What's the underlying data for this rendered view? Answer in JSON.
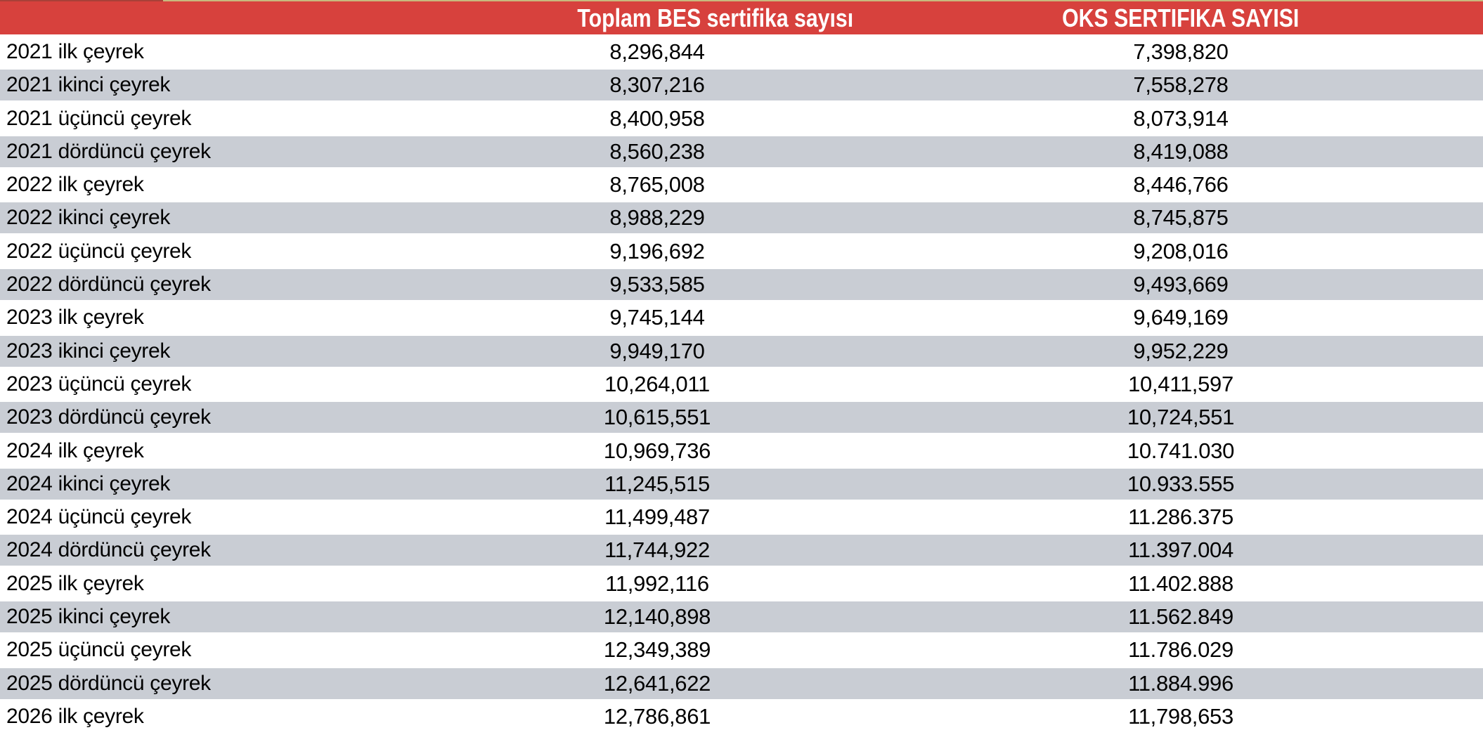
{
  "header": {
    "col_bes": "Toplam BES sertifika sayısı",
    "col_oks": "OKS SERTIFIKA SAYISI"
  },
  "rows": [
    {
      "label": "2021 ilk çeyrek",
      "bes": "8,296,844",
      "oks": "7,398,820"
    },
    {
      "label": "2021 ikinci çeyrek",
      "bes": "8,307,216",
      "oks": "7,558,278"
    },
    {
      "label": "2021 üçüncü çeyrek",
      "bes": "8,400,958",
      "oks": "8,073,914"
    },
    {
      "label": "2021 dördüncü çeyrek",
      "bes": "8,560,238",
      "oks": "8,419,088"
    },
    {
      "label": "2022 ilk çeyrek",
      "bes": "8,765,008",
      "oks": "8,446,766"
    },
    {
      "label": "2022 ikinci çeyrek",
      "bes": "8,988,229",
      "oks": "8,745,875"
    },
    {
      "label": "2022 üçüncü çeyrek",
      "bes": "9,196,692",
      "oks": "9,208,016"
    },
    {
      "label": "2022 dördüncü çeyrek",
      "bes": "9,533,585",
      "oks": "9,493,669"
    },
    {
      "label": "2023 ilk çeyrek",
      "bes": "9,745,144",
      "oks": "9,649,169"
    },
    {
      "label": "2023 ikinci çeyrek",
      "bes": "9,949,170",
      "oks": "9,952,229"
    },
    {
      "label": "2023 üçüncü çeyrek",
      "bes": "10,264,011",
      "oks": "10,411,597"
    },
    {
      "label": "2023 dördüncü çeyrek",
      "bes": "10,615,551",
      "oks": "10,724,551"
    },
    {
      "label": "2024 ilk çeyrek",
      "bes": "10,969,736",
      "oks": "10.741.030"
    },
    {
      "label": "2024 ikinci çeyrek",
      "bes": "11,245,515",
      "oks": "10.933.555"
    },
    {
      "label": "2024 üçüncü çeyrek",
      "bes": "11,499,487",
      "oks": "11.286.375"
    },
    {
      "label": "2024 dördüncü çeyrek",
      "bes": "11,744,922",
      "oks": "11.397.004"
    },
    {
      "label": "2025 ilk çeyrek",
      "bes": "11,992,116",
      "oks": "11.402.888"
    },
    {
      "label": "2025 ikinci çeyrek",
      "bes": "12,140,898",
      "oks": "11.562.849"
    },
    {
      "label": "2025 üçüncü çeyrek",
      "bes": "12,349,389",
      "oks": "11.786.029"
    },
    {
      "label": "2025 dördüncü çeyrek",
      "bes": "12,641,622",
      "oks": "11.884.996"
    },
    {
      "label": "2026 ilk çeyrek",
      "bes": "12,786,861",
      "oks": "11,798,653"
    }
  ],
  "colors": {
    "header_bg": "#d7413d",
    "header_text": "#ffffff",
    "row_alt_bg": "#c9cdd4",
    "body_text": "#000000",
    "top_strip_left": "#a84038",
    "top_strip_right": "#c8b97e"
  },
  "chart_data": {
    "type": "table",
    "title": "",
    "columns": [
      "",
      "Toplam BES sertifika sayısı",
      "OKS SERTIFIKA SAYISI"
    ],
    "rows": [
      [
        "2021 ilk çeyrek",
        8296844,
        7398820
      ],
      [
        "2021 ikinci çeyrek",
        8307216,
        7558278
      ],
      [
        "2021 üçüncü çeyrek",
        8400958,
        8073914
      ],
      [
        "2021 dördüncü çeyrek",
        8560238,
        8419088
      ],
      [
        "2022 ilk çeyrek",
        8765008,
        8446766
      ],
      [
        "2022 ikinci çeyrek",
        8988229,
        8745875
      ],
      [
        "2022 üçüncü çeyrek",
        9196692,
        9208016
      ],
      [
        "2022 dördüncü çeyrek",
        9533585,
        9493669
      ],
      [
        "2023 ilk çeyrek",
        9745144,
        9649169
      ],
      [
        "2023 ikinci çeyrek",
        9949170,
        9952229
      ],
      [
        "2023 üçüncü çeyrek",
        10264011,
        10411597
      ],
      [
        "2023 dördüncü çeyrek",
        10615551,
        10724551
      ],
      [
        "2024 ilk çeyrek",
        10969736,
        10741030
      ],
      [
        "2024 ikinci çeyrek",
        11245515,
        10933555
      ],
      [
        "2024 üçüncü çeyrek",
        11499487,
        11286375
      ],
      [
        "2024 dördüncü çeyrek",
        11744922,
        11397004
      ],
      [
        "2025 ilk çeyrek",
        11992116,
        11402888
      ],
      [
        "2025 ikinci çeyrek",
        12140898,
        11562849
      ],
      [
        "2025 üçüncü çeyrek",
        12349389,
        11786029
      ],
      [
        "2025 dördüncü çeyrek",
        12641622,
        11884996
      ],
      [
        "2026 ilk çeyrek",
        12786861,
        11798653
      ]
    ],
    "layout_hints": {
      "striped_rows": true,
      "stripe_color": "#c9cdd4",
      "header_color": "#d7413d",
      "first_row_stripe": false
    }
  }
}
